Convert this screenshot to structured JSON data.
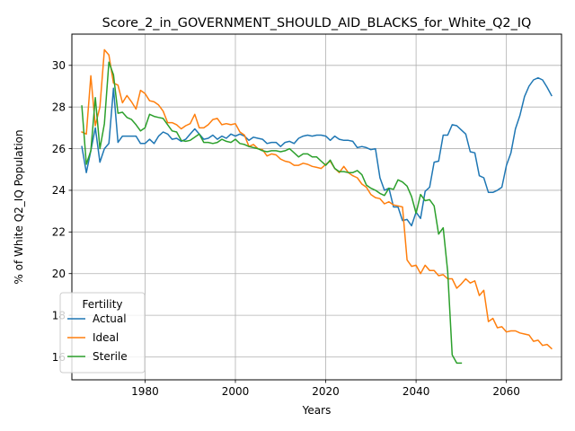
{
  "chart_data": {
    "type": "line",
    "title": "Score_2_in_GOVERNMENT_SHOULD_AID_BLACKS_for_White_Q2_IQ",
    "xlabel": "Years",
    "ylabel": "% of White Q2_IQ Population",
    "xlim": [
      1963.8,
      2072.2
    ],
    "ylim": [
      14.9,
      31.5
    ],
    "xticks": [
      1980,
      2000,
      2020,
      2040,
      2060
    ],
    "yticks": [
      16,
      18,
      20,
      22,
      24,
      26,
      28,
      30
    ],
    "grid": true,
    "legend": {
      "title": "Fertility",
      "position": "lower-left"
    },
    "series": [
      {
        "name": "Actual",
        "color": "#1f77b4",
        "x": [
          1966,
          1967,
          1968,
          1969,
          1970,
          1971,
          1972,
          1973,
          1974,
          1975,
          1976,
          1977,
          1978,
          1979,
          1980,
          1981,
          1982,
          1983,
          1984,
          1985,
          1986,
          1987,
          1988,
          1989,
          1990,
          1991,
          1992,
          1993,
          1994,
          1995,
          1996,
          1997,
          1998,
          1999,
          2000,
          2001,
          2002,
          2003,
          2004,
          2005,
          2006,
          2007,
          2008,
          2009,
          2010,
          2011,
          2012,
          2013,
          2014,
          2015,
          2016,
          2017,
          2018,
          2019,
          2020,
          2021,
          2022,
          2023,
          2024,
          2025,
          2026,
          2027,
          2028,
          2029,
          2030,
          2031,
          2032,
          2033,
          2034,
          2035,
          2036,
          2037,
          2038,
          2039,
          2040,
          2041,
          2042,
          2043,
          2044,
          2045,
          2046,
          2047,
          2048,
          2049,
          2050,
          2051,
          2052,
          2053,
          2054,
          2055,
          2056,
          2057,
          2058,
          2059,
          2060,
          2061,
          2062,
          2063,
          2064,
          2065,
          2066,
          2067,
          2068,
          2069,
          2070
        ],
        "values": [
          26.1,
          24.85,
          25.9,
          27.0,
          25.35,
          26.0,
          26.25,
          28.9,
          26.3,
          26.6,
          26.6,
          26.6,
          26.6,
          26.25,
          26.25,
          26.45,
          26.25,
          26.6,
          26.8,
          26.7,
          26.45,
          26.5,
          26.35,
          26.45,
          26.7,
          26.95,
          26.7,
          26.45,
          26.5,
          26.65,
          26.45,
          26.6,
          26.5,
          26.7,
          26.6,
          26.7,
          26.6,
          26.4,
          26.55,
          26.5,
          26.45,
          26.25,
          26.3,
          26.3,
          26.1,
          26.3,
          26.35,
          26.25,
          26.5,
          26.6,
          26.65,
          26.6,
          26.65,
          26.65,
          26.6,
          26.4,
          26.6,
          26.45,
          26.4,
          26.4,
          26.35,
          26.05,
          26.1,
          26.05,
          25.95,
          26.0,
          24.6,
          24.0,
          24.1,
          23.2,
          23.2,
          22.55,
          22.6,
          22.3,
          22.95,
          22.65,
          23.95,
          24.15,
          25.35,
          25.4,
          26.65,
          26.65,
          27.15,
          27.1,
          26.9,
          26.7,
          25.85,
          25.8,
          24.7,
          24.6,
          23.9,
          23.9,
          24.0,
          24.15,
          25.2,
          25.8,
          26.95,
          27.6,
          28.5,
          29.0,
          29.3,
          29.4,
          29.3,
          28.95,
          28.55
        ]
      },
      {
        "name": "Ideal",
        "color": "#ff7f0e",
        "x": [
          1966,
          1967,
          1968,
          1969,
          1970,
          1971,
          1972,
          1973,
          1974,
          1975,
          1976,
          1977,
          1978,
          1979,
          1980,
          1981,
          1982,
          1983,
          1984,
          1985,
          1986,
          1987,
          1988,
          1989,
          1990,
          1991,
          1992,
          1993,
          1994,
          1995,
          1996,
          1997,
          1998,
          1999,
          2000,
          2001,
          2002,
          2003,
          2004,
          2005,
          2006,
          2007,
          2008,
          2009,
          2010,
          2011,
          2012,
          2013,
          2014,
          2015,
          2016,
          2017,
          2018,
          2019,
          2020,
          2021,
          2022,
          2023,
          2024,
          2025,
          2026,
          2027,
          2028,
          2029,
          2030,
          2031,
          2032,
          2033,
          2034,
          2035,
          2036,
          2037,
          2038,
          2039,
          2040,
          2041,
          2042,
          2043,
          2044,
          2045,
          2046,
          2047,
          2048,
          2049,
          2050,
          2051,
          2052,
          2053,
          2054,
          2055,
          2056,
          2057,
          2058,
          2059,
          2060,
          2061,
          2062,
          2063,
          2064,
          2065,
          2066,
          2067,
          2068,
          2069,
          2070
        ],
        "values": [
          26.8,
          26.7,
          29.5,
          27.1,
          28.0,
          30.75,
          30.5,
          29.15,
          29.05,
          28.2,
          28.55,
          28.25,
          27.9,
          28.8,
          28.65,
          28.3,
          28.25,
          28.1,
          27.8,
          27.25,
          27.25,
          27.15,
          26.95,
          27.1,
          27.2,
          27.65,
          27.0,
          27.0,
          27.15,
          27.4,
          27.45,
          27.15,
          27.2,
          27.15,
          27.2,
          26.8,
          26.65,
          26.1,
          26.2,
          26.0,
          25.95,
          25.65,
          25.75,
          25.7,
          25.5,
          25.4,
          25.35,
          25.2,
          25.2,
          25.3,
          25.25,
          25.15,
          25.1,
          25.05,
          25.25,
          25.4,
          25.05,
          24.85,
          25.15,
          24.85,
          24.7,
          24.6,
          24.3,
          24.15,
          23.8,
          23.65,
          23.6,
          23.35,
          23.45,
          23.3,
          23.25,
          23.2,
          20.65,
          20.35,
          20.4,
          20.0,
          20.4,
          20.15,
          20.15,
          19.9,
          19.95,
          19.75,
          19.75,
          19.3,
          19.5,
          19.75,
          19.55,
          19.65,
          18.95,
          19.2,
          17.7,
          17.85,
          17.4,
          17.45,
          17.2,
          17.25,
          17.25,
          17.15,
          17.1,
          17.05,
          16.75,
          16.8,
          16.55,
          16.6,
          16.4
        ]
      },
      {
        "name": "Sterile",
        "color": "#2ca02c",
        "x": [
          1966,
          1967,
          1968,
          1969,
          1970,
          1971,
          1972,
          1973,
          1974,
          1975,
          1976,
          1977,
          1978,
          1979,
          1980,
          1981,
          1982,
          1983,
          1984,
          1985,
          1986,
          1987,
          1988,
          1989,
          1990,
          1991,
          1992,
          1993,
          1994,
          1995,
          1996,
          1997,
          1998,
          1999,
          2000,
          2001,
          2002,
          2003,
          2004,
          2005,
          2006,
          2007,
          2008,
          2009,
          2010,
          2011,
          2012,
          2013,
          2014,
          2015,
          2016,
          2017,
          2018,
          2019,
          2020,
          2021,
          2022,
          2023,
          2024,
          2025,
          2026,
          2027,
          2028,
          2029,
          2030,
          2031,
          2032,
          2033,
          2034,
          2035,
          2036,
          2037,
          2038,
          2039,
          2040,
          2041,
          2042,
          2043,
          2044,
          2045,
          2046,
          2047,
          2048,
          2049,
          2050
        ],
        "values": [
          28.05,
          25.25,
          25.9,
          28.45,
          26.0,
          27.2,
          30.15,
          29.55,
          27.7,
          27.75,
          27.5,
          27.4,
          27.15,
          26.85,
          27.0,
          27.65,
          27.55,
          27.5,
          27.45,
          27.15,
          26.85,
          26.8,
          26.4,
          26.35,
          26.4,
          26.55,
          26.7,
          26.3,
          26.3,
          26.25,
          26.3,
          26.45,
          26.35,
          26.3,
          26.45,
          26.25,
          26.2,
          26.1,
          26.05,
          26.0,
          25.9,
          25.85,
          25.9,
          25.9,
          25.85,
          25.9,
          26.0,
          25.8,
          25.6,
          25.75,
          25.75,
          25.6,
          25.6,
          25.4,
          25.2,
          25.45,
          25.05,
          24.9,
          24.9,
          24.85,
          24.85,
          24.95,
          24.75,
          24.25,
          24.1,
          24.0,
          23.85,
          23.75,
          24.1,
          24.05,
          24.5,
          24.4,
          24.2,
          23.7,
          22.9,
          23.8,
          23.5,
          23.55,
          23.25,
          21.9,
          22.2,
          20.1,
          16.1,
          15.7,
          15.7
        ]
      }
    ]
  }
}
